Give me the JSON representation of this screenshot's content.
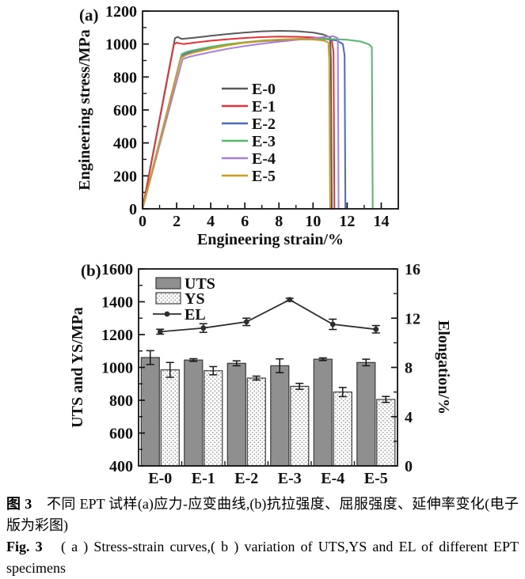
{
  "figure": {
    "panel_a_label": "(a)",
    "panel_b_label": "(b)"
  },
  "caption": {
    "cn_label": "图 3",
    "cn_body": "　不同 EPT 试样(a)应力-应变曲线,(b)抗拉强度、屈服强度、延伸率变化(电子版为彩图)",
    "en_label": "Fig. 3",
    "en_body": "　( a ) Stress-strain curves,( b ) variation of UTS,YS and EL of different EPT specimens"
  },
  "chart_data": [
    {
      "type": "line",
      "panel": "a",
      "title": "",
      "xlabel": "Engineering strain/%",
      "ylabel": "Engineering stress/MPa",
      "xlim": [
        0,
        15
      ],
      "ylim": [
        0,
        1200
      ],
      "xticks": [
        0,
        2,
        4,
        6,
        8,
        10,
        12,
        14
      ],
      "yticks": [
        0,
        200,
        400,
        600,
        800,
        1000,
        1200
      ],
      "grid": false,
      "legend_position": "inside-center-left",
      "series": [
        {
          "name": "E-0",
          "color": "#595959",
          "points": [
            [
              0,
              0
            ],
            [
              1.9,
              1035
            ],
            [
              2.05,
              1043
            ],
            [
              2.3,
              1031
            ],
            [
              3,
              1038
            ],
            [
              4,
              1050
            ],
            [
              5,
              1061
            ],
            [
              6,
              1070
            ],
            [
              7,
              1077
            ],
            [
              8,
              1080
            ],
            [
              9,
              1078
            ],
            [
              10,
              1070
            ],
            [
              10.6,
              1058
            ],
            [
              11.0,
              1040
            ],
            [
              11.05,
              900
            ],
            [
              11.1,
              0
            ]
          ]
        },
        {
          "name": "E-1",
          "color": "#e23338",
          "points": [
            [
              0,
              0
            ],
            [
              1.85,
              1000
            ],
            [
              2.0,
              1008
            ],
            [
              2.4,
              1000
            ],
            [
              3,
              1008
            ],
            [
              4,
              1020
            ],
            [
              5,
              1029
            ],
            [
              6,
              1037
            ],
            [
              7,
              1042
            ],
            [
              8,
              1045
            ],
            [
              9,
              1044
            ],
            [
              10,
              1040
            ],
            [
              10.8,
              1032
            ],
            [
              11.1,
              1022
            ],
            [
              11.2,
              950
            ],
            [
              11.25,
              0
            ]
          ]
        },
        {
          "name": "E-2",
          "color": "#4b6ac3",
          "points": [
            [
              0,
              0
            ],
            [
              2.25,
              920
            ],
            [
              2.5,
              941
            ],
            [
              3,
              958
            ],
            [
              4,
              980
            ],
            [
              5,
              996
            ],
            [
              6,
              1008
            ],
            [
              7,
              1017
            ],
            [
              8,
              1023
            ],
            [
              9,
              1027
            ],
            [
              10,
              1029
            ],
            [
              10.8,
              1029
            ],
            [
              11.4,
              1021
            ],
            [
              11.75,
              1000
            ],
            [
              11.85,
              930
            ],
            [
              11.9,
              0
            ]
          ]
        },
        {
          "name": "E-3",
          "color": "#54b96a",
          "points": [
            [
              0,
              0
            ],
            [
              2.3,
              940
            ],
            [
              2.6,
              953
            ],
            [
              3,
              963
            ],
            [
              4,
              983
            ],
            [
              5,
              999
            ],
            [
              6,
              1011
            ],
            [
              7,
              1021
            ],
            [
              8,
              1027
            ],
            [
              9,
              1031
            ],
            [
              10,
              1033
            ],
            [
              11,
              1031
            ],
            [
              12,
              1026
            ],
            [
              12.8,
              1015
            ],
            [
              13.3,
              997
            ],
            [
              13.45,
              980
            ],
            [
              13.5,
              0
            ]
          ]
        },
        {
          "name": "E-4",
          "color": "#a97fd0",
          "points": [
            [
              0,
              0
            ],
            [
              2.35,
              908
            ],
            [
              2.7,
              921
            ],
            [
              3,
              929
            ],
            [
              4,
              951
            ],
            [
              5,
              971
            ],
            [
              6,
              988
            ],
            [
              7,
              1002
            ],
            [
              8,
              1014
            ],
            [
              9,
              1025
            ],
            [
              10,
              1035
            ],
            [
              10.8,
              1044
            ],
            [
              11.2,
              1047
            ],
            [
              11.45,
              1036
            ],
            [
              11.5,
              0
            ]
          ]
        },
        {
          "name": "E-5",
          "color": "#d09b1e",
          "points": [
            [
              0,
              0
            ],
            [
              2.25,
              915
            ],
            [
              2.55,
              933
            ],
            [
              3,
              948
            ],
            [
              4,
              972
            ],
            [
              5,
              992
            ],
            [
              6,
              1008
            ],
            [
              7,
              1019
            ],
            [
              8,
              1026
            ],
            [
              9,
              1030
            ],
            [
              10,
              1027
            ],
            [
              10.6,
              1021
            ],
            [
              10.9,
              1010
            ],
            [
              10.95,
              900
            ],
            [
              11.0,
              0
            ]
          ]
        }
      ]
    },
    {
      "type": "bar",
      "panel": "b",
      "title": "",
      "categories": [
        "E-0",
        "E-1",
        "E-2",
        "E-3",
        "E-4",
        "E-5"
      ],
      "ylabel_left": "UTS and YS/MPa",
      "ylabel_right": "Elongation/%",
      "ylim_left": [
        400,
        1600
      ],
      "ylim_right": [
        0,
        16
      ],
      "yticks_left": [
        400,
        600,
        800,
        1000,
        1200,
        1400,
        1600
      ],
      "yticks_right": [
        0,
        4,
        8,
        12,
        16
      ],
      "grid": false,
      "legend_position": "inside-top-left",
      "series": [
        {
          "name": "UTS",
          "kind": "bar",
          "fill": "solid-gray",
          "color": "#8f8f8f",
          "axis": "left",
          "values": [
            1060,
            1045,
            1025,
            1010,
            1050,
            1030
          ],
          "errors": [
            42,
            8,
            15,
            42,
            8,
            20
          ]
        },
        {
          "name": "YS",
          "kind": "bar",
          "fill": "dotted",
          "color": "#ffffff",
          "axis": "left",
          "values": [
            985,
            980,
            935,
            885,
            850,
            805
          ],
          "errors": [
            45,
            25,
            12,
            18,
            28,
            18
          ]
        },
        {
          "name": "EL",
          "kind": "line",
          "color": "#2e2e2e",
          "axis": "right",
          "values": [
            10.9,
            11.2,
            11.7,
            13.5,
            11.5,
            11.1
          ],
          "errors": [
            0.2,
            0.35,
            0.3,
            0.12,
            0.42,
            0.3
          ]
        }
      ]
    }
  ]
}
